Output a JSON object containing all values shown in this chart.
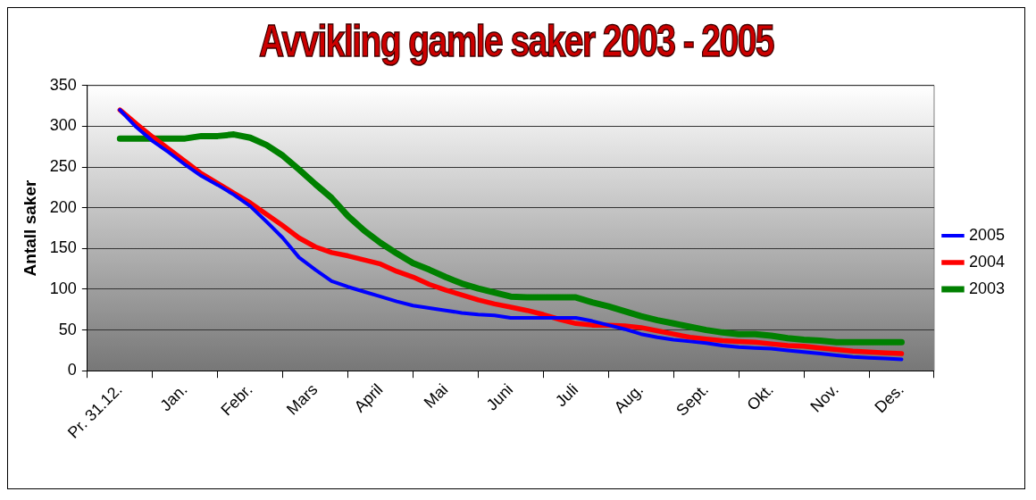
{
  "chart_data": {
    "type": "line",
    "title": "Avvikling gamle saker 2003 - 2005",
    "ylabel": "Antall saker",
    "categories": [
      "Pr. 31.12.",
      null,
      null,
      null,
      "Jan.",
      null,
      null,
      null,
      "Febr.",
      null,
      null,
      null,
      "Mars",
      null,
      null,
      null,
      "April",
      null,
      null,
      null,
      "Mai",
      null,
      null,
      null,
      "Juni",
      null,
      null,
      null,
      "Juli",
      null,
      null,
      null,
      "Aug.",
      null,
      null,
      null,
      "Sept.",
      null,
      null,
      null,
      "Okt.",
      null,
      null,
      null,
      "Nov.",
      null,
      null,
      null,
      "Des."
    ],
    "series": [
      {
        "name": "2003",
        "color": "#008000",
        "values": [
          285,
          285,
          285,
          285,
          285,
          288,
          288,
          290,
          286,
          277,
          264,
          247,
          229,
          212,
          190,
          172,
          157,
          144,
          132,
          124,
          115,
          107,
          101,
          96,
          91,
          90,
          90,
          90,
          90,
          84,
          79,
          73,
          67,
          62,
          58,
          54,
          50,
          47,
          45,
          45,
          43,
          40,
          38,
          37,
          35,
          35,
          35,
          35,
          35
        ]
      },
      {
        "name": "2004",
        "color": "#ff0000",
        "values": [
          320,
          303,
          287,
          272,
          257,
          242,
          230,
          218,
          206,
          192,
          178,
          163,
          152,
          145,
          141,
          136,
          131,
          122,
          115,
          106,
          99,
          93,
          87,
          82,
          78,
          74,
          69,
          63,
          58,
          56,
          56,
          55,
          53,
          49,
          45,
          41,
          39,
          37,
          36,
          35,
          33,
          31,
          30,
          28,
          26,
          24,
          23,
          22,
          21
        ]
      },
      {
        "name": "2005",
        "color": "#0000ff",
        "values": [
          320,
          299,
          282,
          268,
          253,
          239,
          228,
          216,
          202,
          183,
          163,
          139,
          124,
          110,
          103,
          97,
          91,
          85,
          80,
          77,
          74,
          71,
          69,
          68,
          65,
          65,
          65,
          65,
          65,
          61,
          56,
          51,
          45,
          41,
          38,
          36,
          34,
          31,
          29,
          28,
          27,
          25,
          23,
          21,
          19,
          17,
          16,
          15,
          14
        ]
      }
    ],
    "ylim": [
      0,
      350
    ],
    "yticks": [
      0,
      50,
      100,
      150,
      200,
      250,
      300,
      350
    ],
    "grid": "y",
    "legend": "right",
    "marker": "none",
    "line_style": "solid"
  }
}
